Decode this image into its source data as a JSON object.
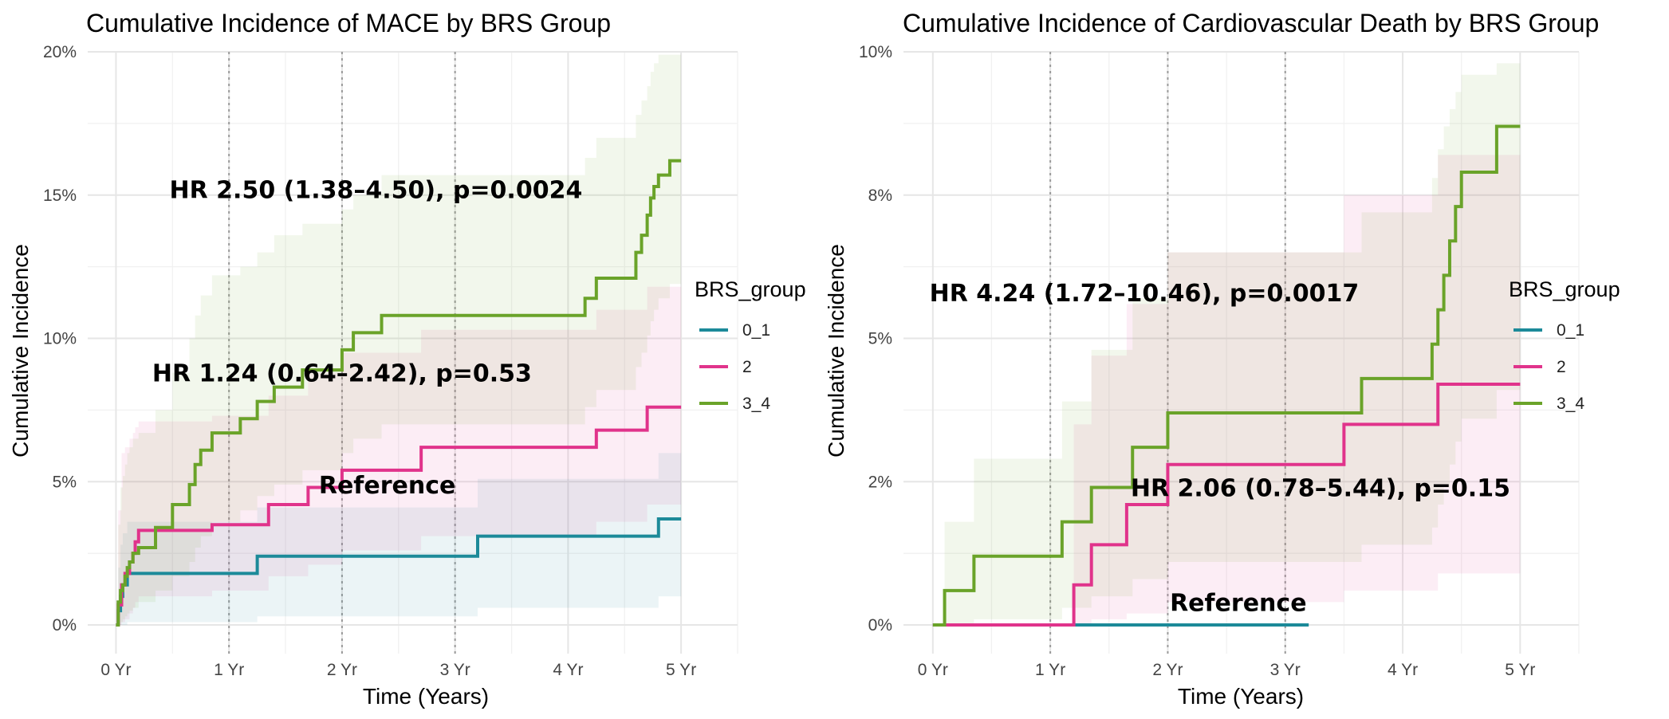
{
  "colors": {
    "0_1": "#1c8a99",
    "2": "#e0338b",
    "3_4": "#6aa329"
  },
  "chart_data": [
    {
      "type": "line",
      "title": "Cumulative Incidence of MACE by BRS Group",
      "xlabel": "Time (Years)",
      "ylabel": "Cumulative Incidence",
      "xlim": [
        -0.25,
        5.5
      ],
      "ylim": [
        -0.01,
        0.2
      ],
      "x_ticks": [
        0,
        1,
        2,
        3,
        4,
        5
      ],
      "x_tick_labels": [
        "0 Yr",
        "1 Yr",
        "2 Yr",
        "3 Yr",
        "4 Yr",
        "5 Yr"
      ],
      "y_ticks": [
        0,
        0.05,
        0.1,
        0.15,
        0.2
      ],
      "y_tick_labels": [
        "0%",
        "5%",
        "10%",
        "15%",
        "20%"
      ],
      "reference_lines_x": [
        1,
        2,
        3
      ],
      "grid": true,
      "legend": {
        "title": "BRS_group",
        "position": "right",
        "entries": [
          "0_1",
          "2",
          "3_4"
        ]
      },
      "series": [
        {
          "name": "0_1",
          "color": "#1c8a99",
          "x": [
            0,
            0.02,
            0.04,
            0.06,
            0.1,
            1.25,
            3.2,
            4.8,
            5.0
          ],
          "y": [
            0,
            0.005,
            0.01,
            0.014,
            0.018,
            0.024,
            0.031,
            0.037,
            0.037
          ],
          "ci_low": [
            0,
            0,
            0,
            0,
            0.001,
            0.003,
            0.006,
            0.01,
            0.01
          ],
          "ci_high": [
            0,
            0.02,
            0.028,
            0.032,
            0.036,
            0.041,
            0.051,
            0.06,
            0.06
          ]
        },
        {
          "name": "2",
          "color": "#e0338b",
          "x": [
            0,
            0.02,
            0.05,
            0.08,
            0.12,
            0.15,
            0.17,
            0.2,
            0.85,
            1.35,
            1.7,
            2.0,
            2.7,
            4.25,
            4.7,
            5.0
          ],
          "y": [
            0,
            0.007,
            0.014,
            0.018,
            0.022,
            0.025,
            0.029,
            0.033,
            0.035,
            0.042,
            0.048,
            0.054,
            0.062,
            0.068,
            0.076,
            0.076
          ],
          "ci_low": [
            0,
            0,
            0.001,
            0.002,
            0.004,
            0.006,
            0.008,
            0.01,
            0.012,
            0.017,
            0.021,
            0.026,
            0.031,
            0.036,
            0.042,
            0.042
          ],
          "ci_high": [
            0,
            0.04,
            0.06,
            0.062,
            0.065,
            0.067,
            0.069,
            0.071,
            0.073,
            0.08,
            0.088,
            0.095,
            0.103,
            0.11,
            0.118,
            0.118
          ]
        },
        {
          "name": "3_4",
          "color": "#6aa329",
          "x": [
            0,
            0.02,
            0.04,
            0.06,
            0.08,
            0.1,
            0.12,
            0.15,
            0.2,
            0.35,
            0.5,
            0.65,
            0.7,
            0.75,
            0.85,
            1.1,
            1.25,
            1.4,
            1.65,
            2.0,
            2.1,
            2.35,
            4.15,
            4.25,
            4.6,
            4.65,
            4.7,
            4.73,
            4.76,
            4.8,
            4.9,
            5.0
          ],
          "y": [
            0,
            0.008,
            0.012,
            0.014,
            0.017,
            0.02,
            0.022,
            0.025,
            0.027,
            0.034,
            0.042,
            0.049,
            0.056,
            0.061,
            0.067,
            0.072,
            0.078,
            0.083,
            0.089,
            0.096,
            0.102,
            0.108,
            0.114,
            0.121,
            0.13,
            0.136,
            0.143,
            0.149,
            0.153,
            0.157,
            0.162,
            0.162
          ],
          "ci_low": [
            0,
            0,
            0.001,
            0.002,
            0.003,
            0.004,
            0.005,
            0.006,
            0.008,
            0.012,
            0.017,
            0.022,
            0.027,
            0.031,
            0.036,
            0.04,
            0.045,
            0.049,
            0.054,
            0.06,
            0.065,
            0.07,
            0.076,
            0.082,
            0.09,
            0.095,
            0.101,
            0.106,
            0.11,
            0.114,
            0.119,
            0.119
          ],
          "ci_high": [
            0,
            0.035,
            0.048,
            0.052,
            0.056,
            0.06,
            0.062,
            0.065,
            0.067,
            0.075,
            0.088,
            0.1,
            0.108,
            0.115,
            0.122,
            0.125,
            0.13,
            0.136,
            0.14,
            0.145,
            0.15,
            0.157,
            0.163,
            0.17,
            0.178,
            0.183,
            0.188,
            0.193,
            0.196,
            0.199,
            0.199,
            0.199
          ]
        }
      ],
      "annotations": [
        {
          "text": "HR 2.50 (1.38–4.50), p=0.0024",
          "x": 2.3,
          "y": 0.152
        },
        {
          "text": "HR 1.24 (0.64–2.42), p=0.53",
          "x": 2.0,
          "y": 0.088
        },
        {
          "text": "Reference",
          "x": 2.4,
          "y": 0.049
        }
      ]
    },
    {
      "type": "line",
      "title": "Cumulative Incidence of Cardiovascular Death by BRS Group",
      "xlabel": "Time (Years)",
      "ylabel": "Cumulative Incidence",
      "xlim": [
        -0.25,
        5.5
      ],
      "ylim": [
        -0.005,
        0.1
      ],
      "x_ticks": [
        0,
        1,
        2,
        3,
        4,
        5
      ],
      "x_tick_labels": [
        "0 Yr",
        "1 Yr",
        "2 Yr",
        "3 Yr",
        "4 Yr",
        "5 Yr"
      ],
      "y_ticks": [
        0,
        0.025,
        0.05,
        0.075,
        0.1
      ],
      "y_tick_labels": [
        "0%",
        "2%",
        "5%",
        "8%",
        "10%"
      ],
      "reference_lines_x": [
        1,
        2,
        3
      ],
      "grid": true,
      "legend": {
        "title": "BRS_group",
        "position": "right",
        "entries": [
          "0_1",
          "2",
          "3_4"
        ]
      },
      "series": [
        {
          "name": "0_1",
          "color": "#1c8a99",
          "x": [
            0,
            3.2
          ],
          "y": [
            0,
            0
          ],
          "ci_low": [
            0,
            0
          ],
          "ci_high": [
            0,
            0.006
          ]
        },
        {
          "name": "2",
          "color": "#e0338b",
          "x": [
            0,
            1.2,
            1.35,
            1.65,
            2.0,
            3.5,
            4.3,
            5.0
          ],
          "y": [
            0,
            0.007,
            0.014,
            0.021,
            0.028,
            0.035,
            0.042,
            0.042
          ],
          "ci_low": [
            0,
            0.0,
            0.001,
            0.002,
            0.004,
            0.006,
            0.009,
            0.009
          ],
          "ci_high": [
            0,
            0.035,
            0.047,
            0.056,
            0.065,
            0.075,
            0.082,
            0.082
          ]
        },
        {
          "name": "3_4",
          "color": "#6aa329",
          "x": [
            0,
            0.1,
            0.35,
            1.1,
            1.35,
            1.7,
            2.0,
            3.65,
            4.25,
            4.3,
            4.35,
            4.4,
            4.45,
            4.5,
            4.8,
            5.0
          ],
          "y": [
            0,
            0.006,
            0.012,
            0.018,
            0.024,
            0.031,
            0.037,
            0.043,
            0.049,
            0.055,
            0.061,
            0.067,
            0.073,
            0.079,
            0.087,
            0.087
          ],
          "ci_low": [
            0,
            0,
            0.001,
            0.003,
            0.005,
            0.008,
            0.011,
            0.014,
            0.017,
            0.021,
            0.024,
            0.028,
            0.032,
            0.036,
            0.041,
            0.041
          ],
          "ci_high": [
            0,
            0.018,
            0.029,
            0.039,
            0.048,
            0.057,
            0.065,
            0.072,
            0.078,
            0.083,
            0.087,
            0.09,
            0.093,
            0.096,
            0.098,
            0.098
          ]
        }
      ],
      "annotations": [
        {
          "text": "HR 4.24 (1.72–10.46), p=0.0017",
          "x": 1.8,
          "y": 0.058
        },
        {
          "text": "HR 2.06 (0.78–5.44), p=0.15",
          "x": 3.3,
          "y": 0.024
        },
        {
          "text": "Reference",
          "x": 2.6,
          "y": 0.004
        }
      ]
    }
  ]
}
